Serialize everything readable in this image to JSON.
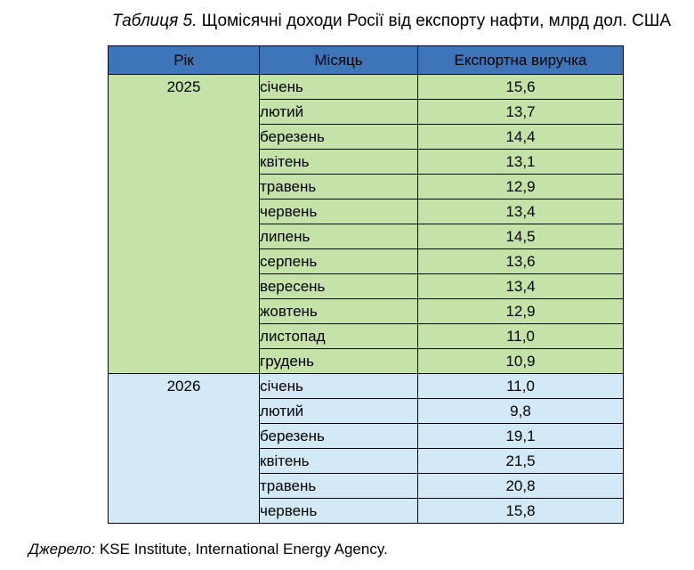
{
  "caption": {
    "label": "Таблиця 5.",
    "text": "Щомісячні доходи Росії від експорту нафти, млрд дол. США"
  },
  "table": {
    "headers": {
      "year": "Рік",
      "month": "Місяць",
      "value": "Експортна виручка"
    },
    "groups": [
      {
        "year": "2025",
        "color": "#c5e3a9",
        "rows": [
          {
            "month": "січень",
            "value": "15,6"
          },
          {
            "month": "лютий",
            "value": "13,7"
          },
          {
            "month": "березень",
            "value": "14,4"
          },
          {
            "month": "квітень",
            "value": "13,1"
          },
          {
            "month": "травень",
            "value": "12,9"
          },
          {
            "month": "червень",
            "value": "13,4"
          },
          {
            "month": "липень",
            "value": "14,5"
          },
          {
            "month": "серпень",
            "value": "13,6"
          },
          {
            "month": "вересень",
            "value": "13,4"
          },
          {
            "month": "жовтень",
            "value": "12,9"
          },
          {
            "month": "листопад",
            "value": "11,0"
          },
          {
            "month": "грудень",
            "value": "10,9"
          }
        ]
      },
      {
        "year": "2026",
        "color": "#d3e9f8",
        "rows": [
          {
            "month": "січень",
            "value": "11,0"
          },
          {
            "month": "лютий",
            "value": "9,8"
          },
          {
            "month": "березень",
            "value": "19,1"
          },
          {
            "month": "квітень",
            "value": "21,5"
          },
          {
            "month": "травень",
            "value": "20,8"
          },
          {
            "month": "червень",
            "value": "15,8"
          }
        ]
      }
    ]
  },
  "source": {
    "label": "Джерело:",
    "text": "KSE Institute, International Energy Agency."
  },
  "colors": {
    "header_bg": "#3e75b8",
    "group_2025_bg": "#c5e3a9",
    "group_2026_bg": "#d3e9f8"
  }
}
